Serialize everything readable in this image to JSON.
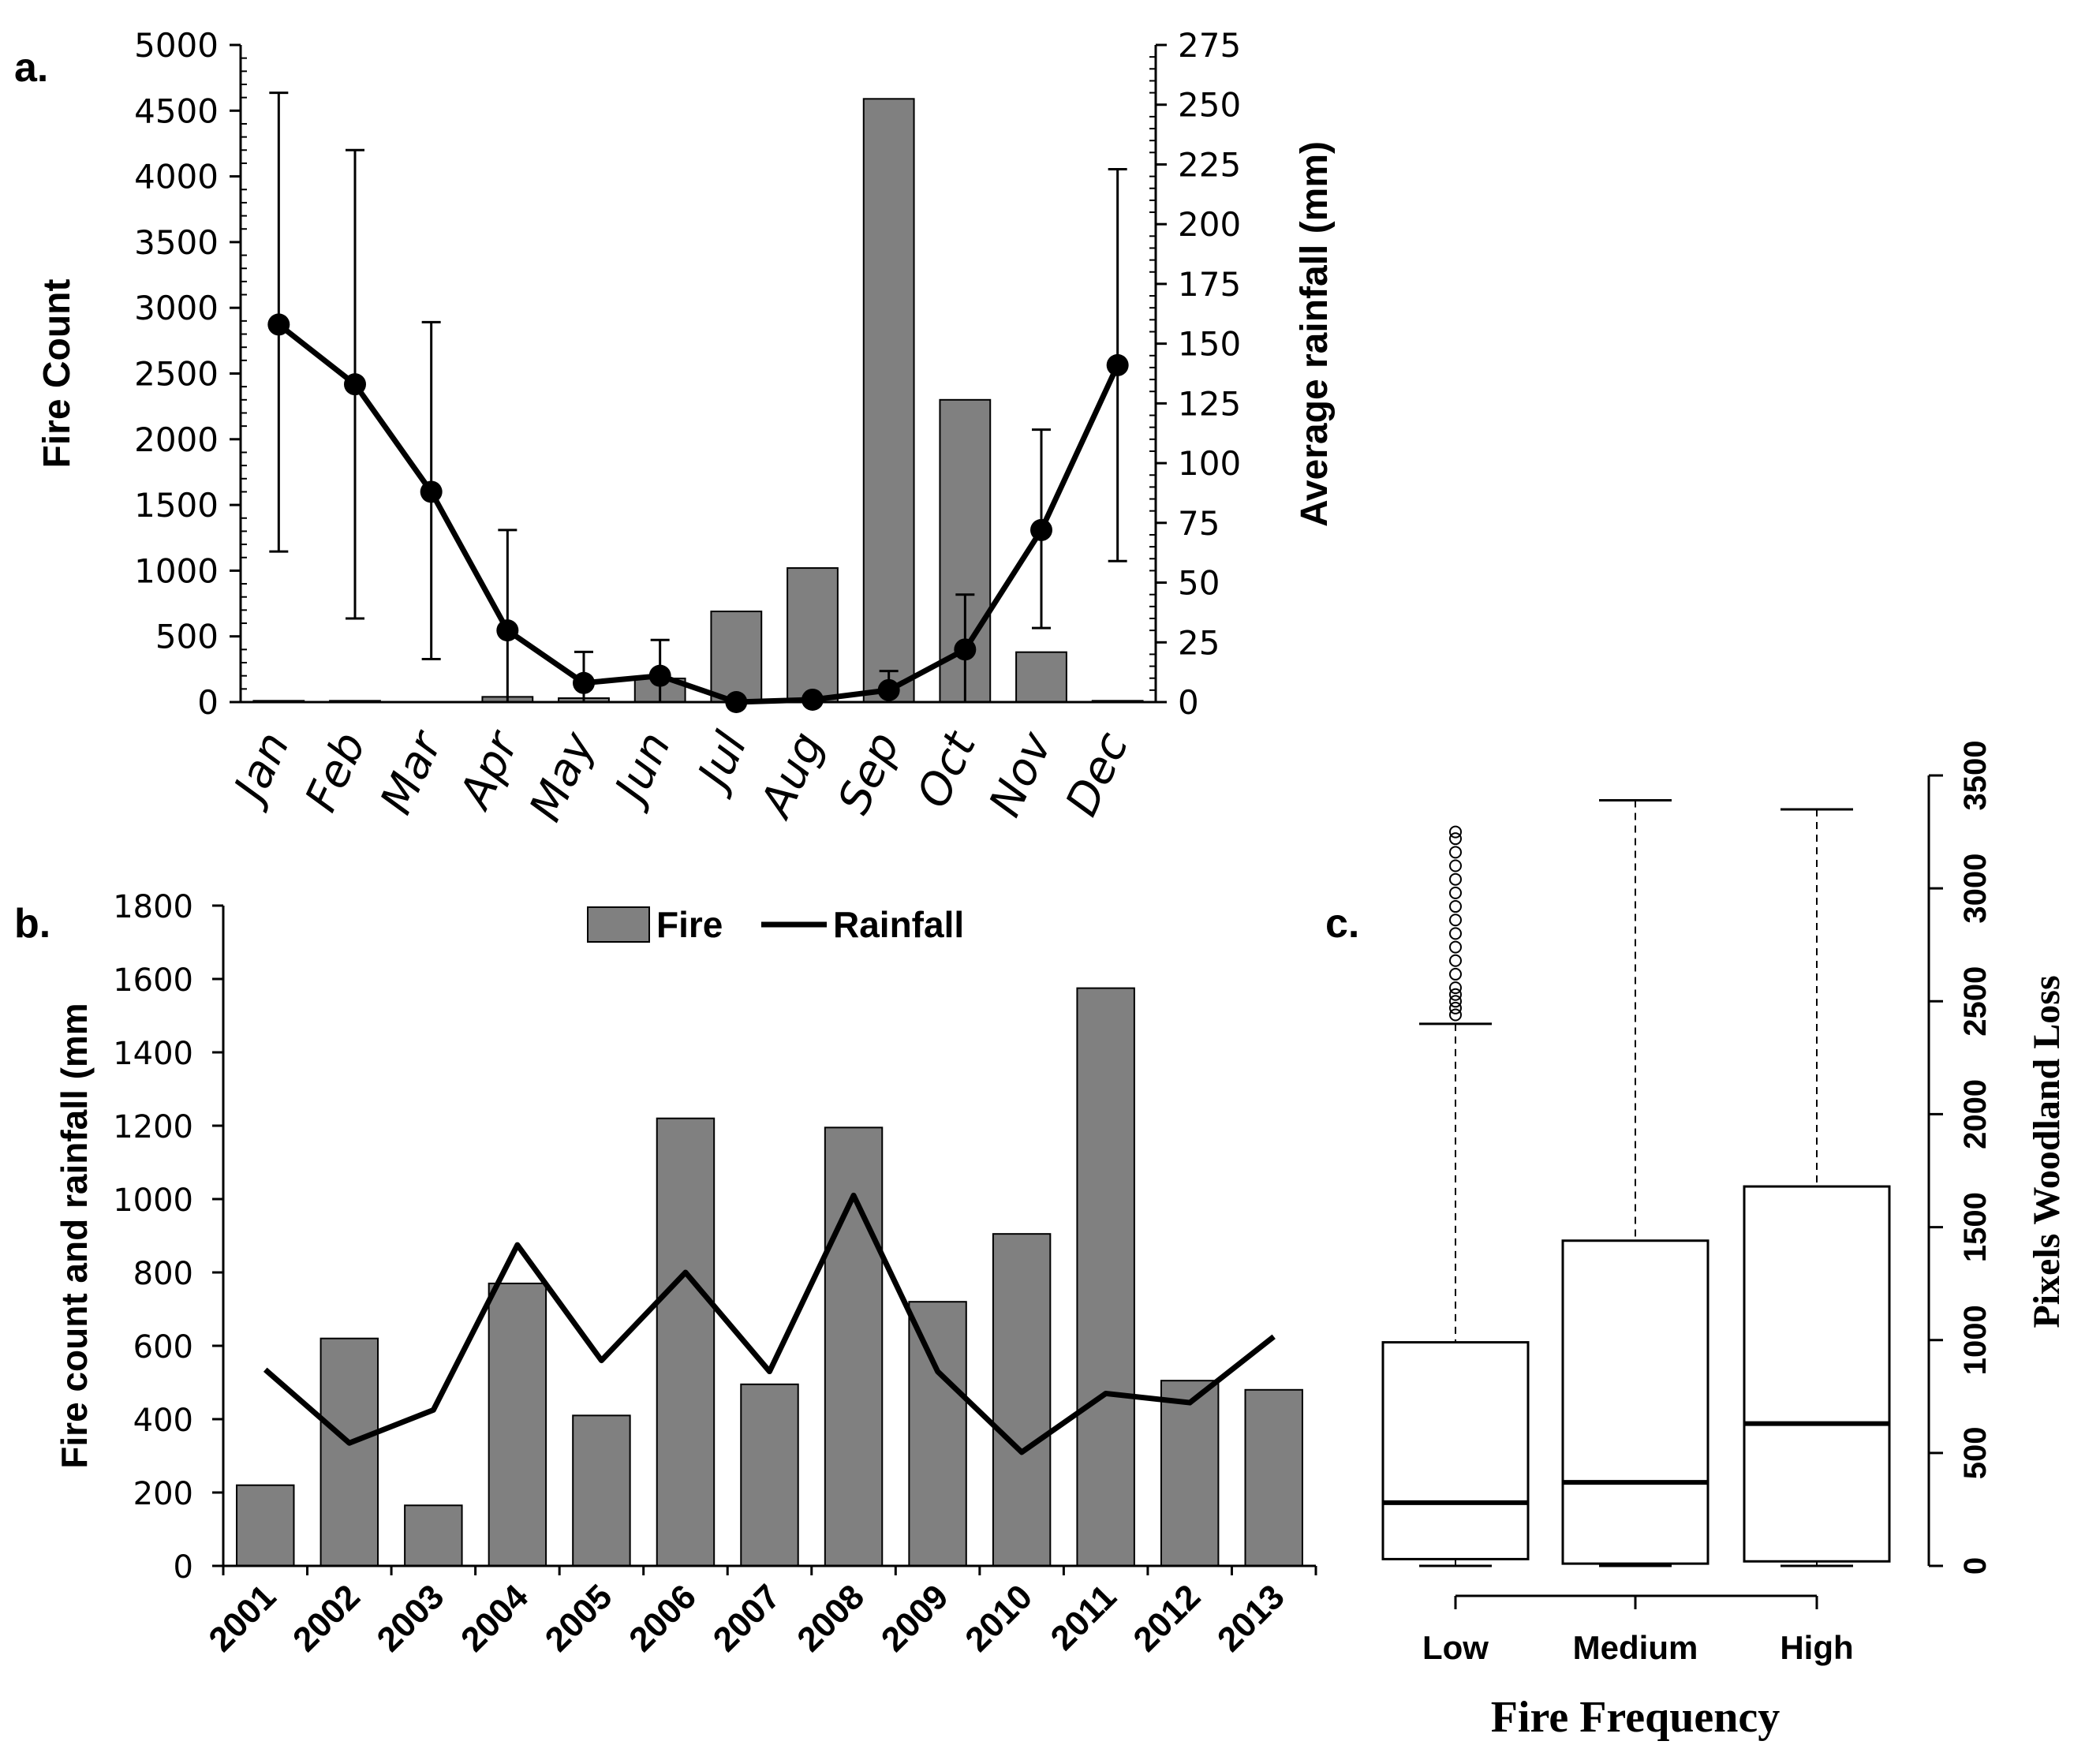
{
  "chart_data": [
    {
      "panel_label": "a.",
      "type": "bar",
      "categories": [
        "Jan",
        "Feb",
        "Mar",
        "Apr",
        "May",
        "Jun",
        "Jul",
        "Aug",
        "Sep",
        "Oct",
        "Nov",
        "Dec"
      ],
      "ylabel": "Fire Count",
      "ylabel_right": "Average rainfall (mm)",
      "ylim": [
        0,
        5000
      ],
      "ylim_right": [
        0,
        275
      ],
      "yticks": [
        "0",
        "500",
        "1000",
        "1500",
        "2000",
        "2500",
        "3000",
        "3500",
        "4000",
        "4500",
        "5000"
      ],
      "yticks_right": [
        "0",
        "25",
        "50",
        "75",
        "100",
        "125",
        "150",
        "175",
        "200",
        "225",
        "250",
        "275"
      ],
      "series": [
        {
          "name": "Fire Count",
          "type": "bar",
          "axis": "left",
          "color": "#808080",
          "values": [
            10,
            10,
            0,
            40,
            30,
            180,
            690,
            1020,
            4590,
            2300,
            380,
            10
          ]
        },
        {
          "name": "Average rainfall",
          "type": "line",
          "axis": "right",
          "color": "#000000",
          "values": [
            158,
            133,
            88,
            30,
            8,
            11,
            0,
            1,
            5,
            22,
            72,
            141
          ],
          "error_low": [
            63,
            35,
            18,
            0,
            0,
            0,
            0,
            0,
            0,
            0,
            31,
            59
          ],
          "error_high": [
            255,
            231,
            159,
            72,
            21,
            26,
            0,
            2,
            13,
            45,
            114,
            223
          ]
        }
      ]
    },
    {
      "panel_label": "b.",
      "type": "bar",
      "categories": [
        "2001",
        "2002",
        "2003",
        "2004",
        "2005",
        "2006",
        "2007",
        "2008",
        "2009",
        "2010",
        "2011",
        "2012",
        "2013"
      ],
      "ylabel": "Fire count and rainfall (mm",
      "ylim": [
        0,
        1800
      ],
      "yticks": [
        "0",
        "200",
        "400",
        "600",
        "800",
        "1000",
        "1200",
        "1400",
        "1600",
        "1800"
      ],
      "legend": {
        "position": "top-center",
        "entries": [
          "Fire",
          "Rainfall"
        ]
      },
      "series": [
        {
          "name": "Fire",
          "type": "bar",
          "color": "#808080",
          "values": [
            220,
            620,
            165,
            770,
            410,
            1220,
            495,
            1195,
            720,
            905,
            1575,
            505,
            480
          ]
        },
        {
          "name": "Rainfall",
          "type": "line",
          "color": "#000000",
          "values": [
            535,
            335,
            425,
            875,
            560,
            800,
            530,
            1010,
            530,
            310,
            470,
            445,
            625
          ]
        }
      ]
    },
    {
      "panel_label": "c.",
      "type": "box",
      "categories": [
        "Low",
        "Medium",
        "High"
      ],
      "xlabel": "Fire Frequency",
      "ylabel": "Pixels Woodland Loss",
      "ylim": [
        0,
        3500
      ],
      "yticks": [
        "0",
        "500",
        "1000",
        "1500",
        "2000",
        "2500",
        "3000",
        "3500"
      ],
      "boxes": [
        {
          "name": "Low",
          "whisker_low": 0,
          "q1": 30,
          "median": 280,
          "q3": 990,
          "whisker_high": 2400,
          "outliers": [
            2440,
            2470,
            2500,
            2530,
            2560,
            2620,
            2680,
            2740,
            2800,
            2860,
            2920,
            2980,
            3040,
            3100,
            3160,
            3220,
            3250
          ]
        },
        {
          "name": "Medium",
          "whisker_low": 0,
          "q1": 10,
          "median": 370,
          "q3": 1440,
          "whisker_high": 3390
        },
        {
          "name": "High",
          "whisker_low": 0,
          "q1": 20,
          "median": 630,
          "q3": 1680,
          "whisker_high": 3350
        }
      ]
    }
  ]
}
